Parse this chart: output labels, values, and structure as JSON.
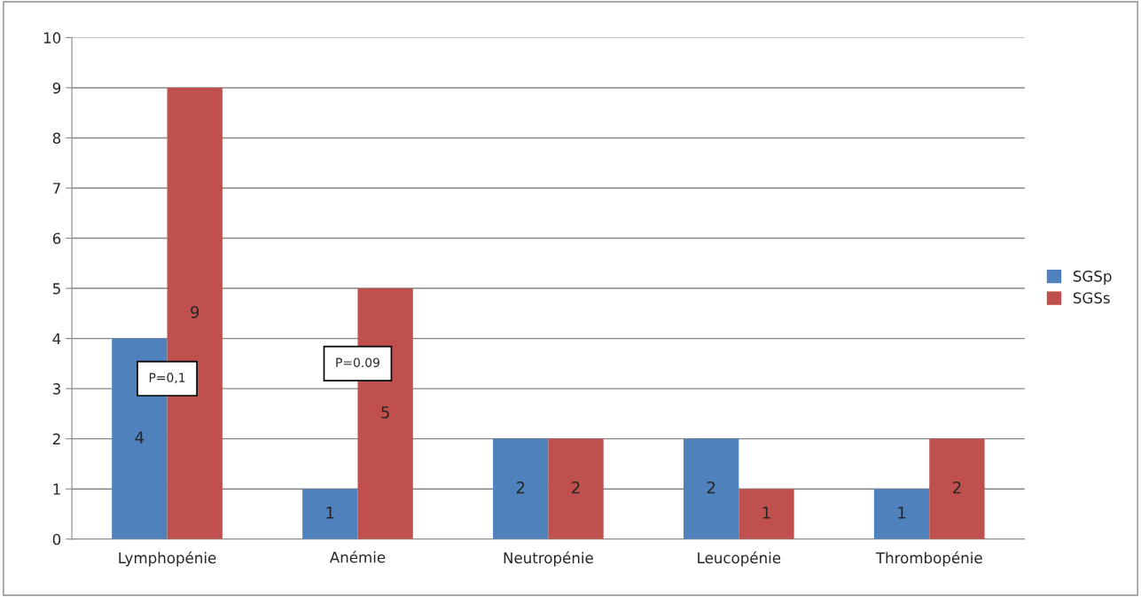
{
  "chart_data": {
    "type": "bar",
    "categories": [
      "Lymphopénie",
      "Anémie",
      "Neutropénie",
      "Leucopénie",
      "Thrombopénie"
    ],
    "series": [
      {
        "name": "SGSp",
        "color": "#4f81bd",
        "values": [
          4,
          1,
          2,
          2,
          1
        ]
      },
      {
        "name": "SGSs",
        "color": "#c0504d",
        "values": [
          9,
          5,
          2,
          1,
          2
        ]
      }
    ],
    "ylim": [
      0,
      10
    ],
    "yticks": [
      0,
      1,
      2,
      3,
      4,
      5,
      6,
      7,
      8,
      9,
      10
    ],
    "grid": "y",
    "legend": "right",
    "data_labels": true,
    "annotations": [
      {
        "text": "P=0,1",
        "x": "Lymphopénie",
        "y": 3.2
      },
      {
        "text": "P=0.09",
        "x": "Anémie",
        "y": 3.5
      }
    ]
  }
}
